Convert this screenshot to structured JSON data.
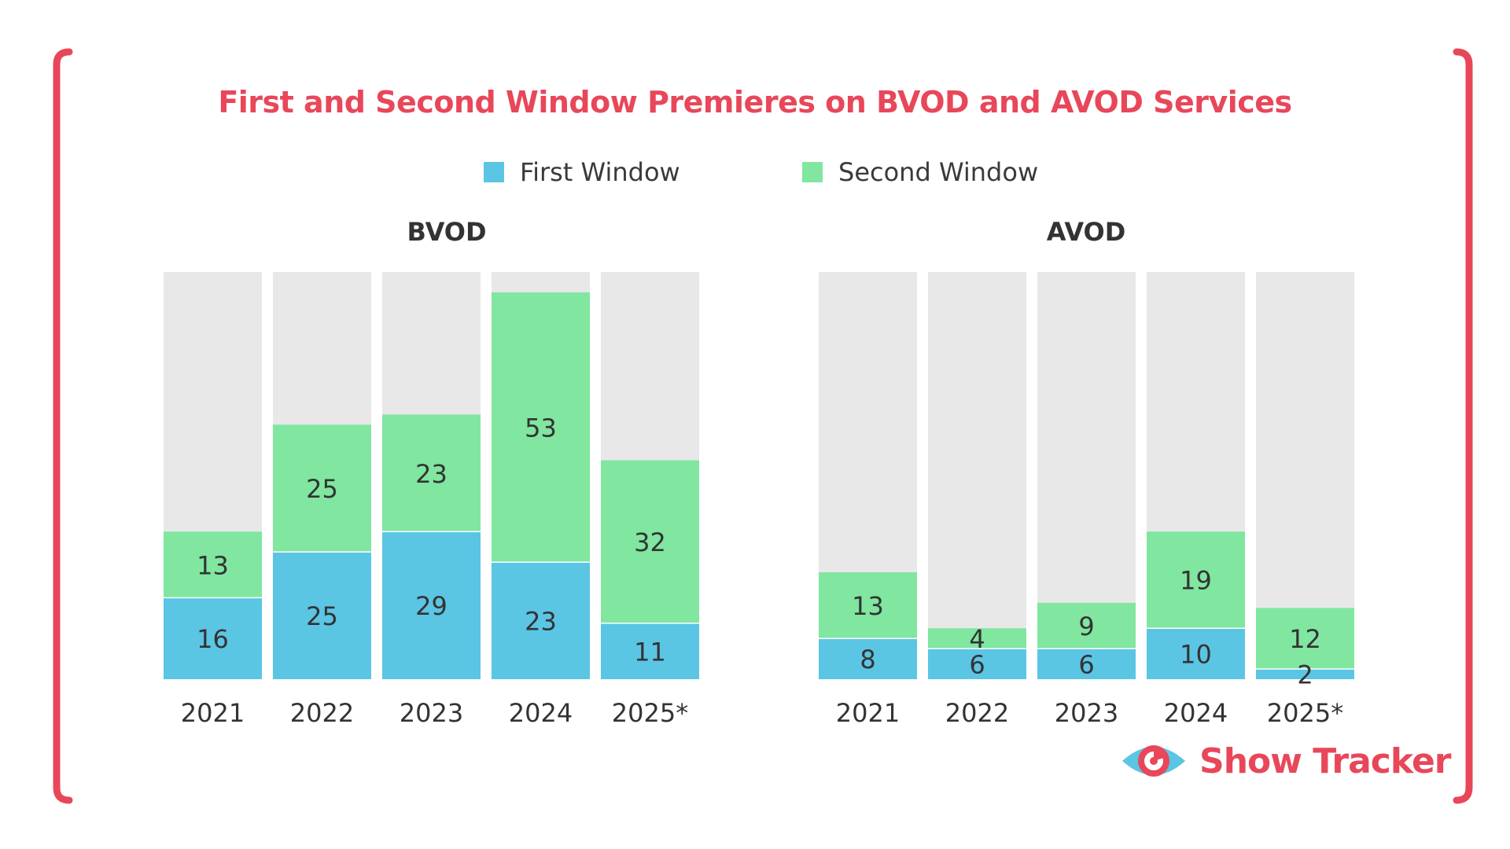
{
  "colors": {
    "accent": "#e8475a",
    "first_window": "#5bc5e4",
    "second_window": "#80e6a0",
    "track": "#e8e8e8",
    "text": "#333333"
  },
  "title": "First and Second Window Premieres on BVOD and AVOD Services",
  "legend": {
    "first": "First Window",
    "second": "Second Window"
  },
  "logo": {
    "text": "Show Tracker",
    "icon": "eye-icon"
  },
  "chart_data": [
    {
      "type": "bar",
      "stacked": true,
      "title": "BVOD",
      "categories": [
        "2021",
        "2022",
        "2023",
        "2024",
        "2025*"
      ],
      "series": [
        {
          "name": "First Window",
          "values": [
            16,
            25,
            29,
            23,
            11
          ]
        },
        {
          "name": "Second Window",
          "values": [
            13,
            25,
            23,
            53,
            32
          ]
        }
      ],
      "ylim": [
        0,
        80
      ],
      "grid": false,
      "legend": "top-center"
    },
    {
      "type": "bar",
      "stacked": true,
      "title": "AVOD",
      "categories": [
        "2021",
        "2022",
        "2023",
        "2024",
        "2025*"
      ],
      "series": [
        {
          "name": "First Window",
          "values": [
            8,
            6,
            6,
            10,
            2
          ]
        },
        {
          "name": "Second Window",
          "values": [
            13,
            4,
            9,
            19,
            12
          ]
        }
      ],
      "ylim": [
        0,
        80
      ],
      "grid": false,
      "legend": "top-center"
    }
  ]
}
